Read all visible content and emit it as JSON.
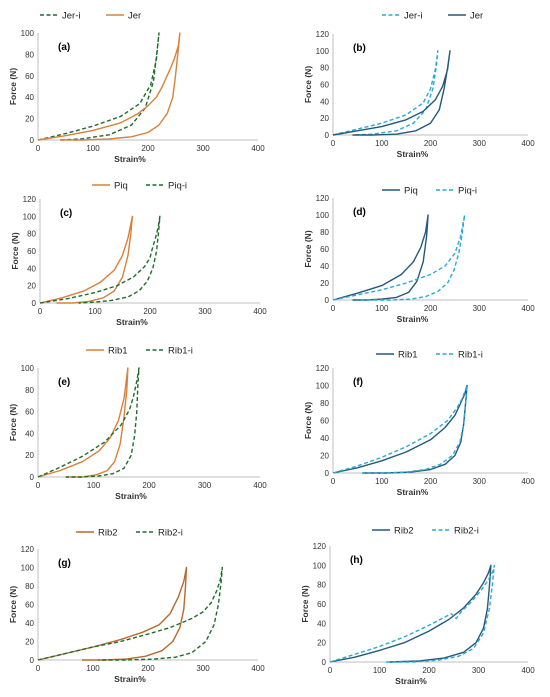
{
  "chart_data": [
    {
      "type": "line",
      "label": "(a)",
      "xlabel": "Strain%",
      "ylabel": "Force (N)",
      "xlim": [
        0,
        400
      ],
      "ylim": [
        0,
        100
      ],
      "xticks": [
        0,
        100,
        200,
        300,
        400
      ],
      "yticks": [
        0,
        20,
        40,
        60,
        80,
        100
      ],
      "legend_position": "top-left",
      "series": [
        {
          "name": "Jer-i",
          "color": "#1e6b2c",
          "dash": "dashed",
          "legend_order": 1,
          "x": [
            0,
            50,
            100,
            150,
            185,
            205,
            215,
            220,
            217,
            210,
            195,
            170,
            130,
            80,
            40
          ],
          "y": [
            0,
            6,
            13,
            22,
            34,
            52,
            75,
            100,
            85,
            55,
            30,
            14,
            5,
            1,
            0
          ]
        },
        {
          "name": "Jer",
          "color": "#d9803a",
          "dash": "solid",
          "legend_order": 2,
          "x": [
            0,
            50,
            100,
            150,
            180,
            200,
            215,
            225,
            232,
            240,
            248,
            255,
            258,
            255,
            250,
            245,
            235,
            220,
            200,
            170,
            130,
            80,
            40
          ],
          "y": [
            0,
            4,
            9,
            16,
            24,
            32,
            40,
            49,
            57,
            66,
            76,
            88,
            100,
            85,
            60,
            40,
            25,
            14,
            7,
            3,
            1,
            0,
            0
          ]
        }
      ]
    },
    {
      "type": "line",
      "label": "(b)",
      "xlabel": "Strain%",
      "ylabel": "Force (N)",
      "xlim": [
        0,
        400
      ],
      "ylim": [
        0,
        120
      ],
      "xticks": [
        0,
        100,
        200,
        300,
        400
      ],
      "yticks": [
        0,
        20,
        40,
        60,
        80,
        100,
        120
      ],
      "legend_position": "top-right",
      "series": [
        {
          "name": "Jer-i",
          "color": "#29a9d6",
          "dash": "dashed",
          "legend_order": 1,
          "x": [
            0,
            50,
            100,
            150,
            185,
            200,
            210,
            215,
            212,
            205,
            190,
            165,
            130,
            80,
            40
          ],
          "y": [
            0,
            7,
            14,
            24,
            38,
            55,
            78,
            100,
            82,
            55,
            30,
            14,
            5,
            1,
            0
          ]
        },
        {
          "name": "Jer",
          "color": "#25597a",
          "dash": "solid",
          "legend_order": 2,
          "x": [
            0,
            50,
            100,
            150,
            185,
            210,
            225,
            235,
            240,
            235,
            228,
            218,
            200,
            170,
            130,
            80,
            40
          ],
          "y": [
            0,
            5,
            10,
            18,
            28,
            42,
            58,
            78,
            100,
            80,
            55,
            30,
            14,
            5,
            1,
            0,
            0
          ]
        }
      ]
    },
    {
      "type": "line",
      "label": "(c)",
      "xlabel": "Strain%",
      "ylabel": "Force (N)",
      "xlim": [
        0,
        400
      ],
      "ylim": [
        0,
        120
      ],
      "xticks": [
        0,
        100,
        200,
        300,
        400
      ],
      "yticks": [
        0,
        20,
        40,
        60,
        80,
        100,
        120
      ],
      "legend_position": "top-left",
      "series": [
        {
          "name": "Piq",
          "color": "#d9803a",
          "dash": "solid",
          "legend_order": 1,
          "x": [
            0,
            40,
            80,
            110,
            135,
            150,
            160,
            168,
            165,
            160,
            150,
            135,
            115,
            90,
            60,
            30
          ],
          "y": [
            0,
            6,
            14,
            24,
            38,
            55,
            75,
            100,
            80,
            55,
            30,
            14,
            6,
            2,
            0,
            0
          ]
        },
        {
          "name": "Piq-i",
          "color": "#1e6b2c",
          "dash": "dashed",
          "legend_order": 2,
          "x": [
            0,
            50,
            100,
            140,
            170,
            190,
            200,
            205,
            210,
            215,
            218,
            216,
            212,
            205,
            195,
            180,
            160,
            130,
            100,
            70
          ],
          "y": [
            0,
            5,
            12,
            20,
            30,
            42,
            52,
            65,
            75,
            88,
            100,
            85,
            60,
            40,
            25,
            14,
            7,
            3,
            1,
            0
          ]
        }
      ]
    },
    {
      "type": "line",
      "label": "(d)",
      "xlabel": "Strain%",
      "ylabel": "Force (N)",
      "xlim": [
        0,
        400
      ],
      "ylim": [
        0,
        120
      ],
      "xticks": [
        0,
        100,
        200,
        300,
        400
      ],
      "yticks": [
        0,
        20,
        40,
        60,
        80,
        100,
        120
      ],
      "legend_position": "top-right",
      "series": [
        {
          "name": "Piq",
          "color": "#25597a",
          "dash": "solid",
          "legend_order": 1,
          "x": [
            0,
            50,
            100,
            140,
            165,
            180,
            190,
            195,
            192,
            185,
            172,
            155,
            130,
            100,
            70,
            40
          ],
          "y": [
            0,
            8,
            17,
            30,
            45,
            62,
            80,
            100,
            75,
            45,
            22,
            9,
            3,
            1,
            0,
            0
          ]
        },
        {
          "name": "Piq-i",
          "color": "#29a9d6",
          "dash": "dashed",
          "legend_order": 2,
          "x": [
            0,
            50,
            100,
            150,
            200,
            230,
            250,
            262,
            270,
            265,
            258,
            248,
            235,
            215,
            190,
            160,
            120,
            80,
            50
          ],
          "y": [
            0,
            6,
            12,
            20,
            30,
            40,
            55,
            75,
            100,
            78,
            55,
            35,
            20,
            10,
            4,
            1,
            0,
            0,
            0
          ]
        }
      ]
    },
    {
      "type": "line",
      "label": "(e)",
      "xlabel": "Strain%",
      "ylabel": "Force (N)",
      "xlim": [
        0,
        400
      ],
      "ylim": [
        0,
        100
      ],
      "xticks": [
        0,
        100,
        200,
        300,
        400
      ],
      "yticks": [
        0,
        20,
        40,
        60,
        80,
        100
      ],
      "legend_position": "top-center",
      "series": [
        {
          "name": "Rib1",
          "color": "#d9803a",
          "dash": "solid",
          "legend_order": 1,
          "x": [
            0,
            40,
            80,
            110,
            130,
            145,
            155,
            162,
            160,
            155,
            148,
            138,
            125,
            105,
            80,
            50
          ],
          "y": [
            0,
            6,
            14,
            24,
            36,
            52,
            72,
            100,
            80,
            55,
            30,
            14,
            6,
            2,
            0,
            0
          ]
        },
        {
          "name": "Rib1-i",
          "color": "#1e6b2c",
          "dash": "dashed",
          "legend_order": 2,
          "x": [
            0,
            40,
            80,
            120,
            150,
            165,
            172,
            178,
            182,
            180,
            178,
            174,
            168,
            155,
            135,
            110,
            80,
            50
          ],
          "y": [
            0,
            9,
            19,
            32,
            48,
            62,
            74,
            88,
            100,
            85,
            60,
            38,
            20,
            8,
            3,
            1,
            0,
            0
          ]
        }
      ]
    },
    {
      "type": "line",
      "label": "(f)",
      "xlabel": "Strain%",
      "ylabel": "Force (N)",
      "xlim": [
        0,
        400
      ],
      "ylim": [
        0,
        120
      ],
      "xticks": [
        0,
        100,
        200,
        300,
        400
      ],
      "yticks": [
        0,
        20,
        40,
        60,
        80,
        100,
        120
      ],
      "legend_position": "top-right",
      "series": [
        {
          "name": "Rib1",
          "color": "#25597a",
          "dash": "solid",
          "legend_order": 1,
          "x": [
            0,
            50,
            100,
            150,
            200,
            230,
            250,
            262,
            270,
            275,
            272,
            268,
            262,
            250,
            230,
            200,
            160,
            110,
            60
          ],
          "y": [
            0,
            6,
            14,
            24,
            38,
            52,
            66,
            80,
            90,
            100,
            80,
            55,
            35,
            20,
            10,
            4,
            1,
            0,
            0
          ]
        },
        {
          "name": "Rib1-i",
          "color": "#29a9d6",
          "dash": "dashed",
          "legend_order": 2,
          "x": [
            0,
            50,
            100,
            150,
            200,
            235,
            255,
            265,
            275,
            272,
            268,
            260,
            245,
            220,
            190,
            150,
            100,
            60
          ],
          "y": [
            0,
            8,
            18,
            30,
            45,
            60,
            75,
            85,
            100,
            78,
            55,
            35,
            20,
            10,
            4,
            1,
            0,
            0
          ]
        }
      ]
    },
    {
      "type": "line",
      "label": "(g)",
      "xlabel": "Strain%",
      "ylabel": "Force (N)",
      "xlim": [
        0,
        400
      ],
      "ylim": [
        0,
        120
      ],
      "xticks": [
        0,
        100,
        200,
        300,
        400
      ],
      "yticks": [
        0,
        20,
        40,
        60,
        80,
        100,
        120
      ],
      "legend_position": "top-left",
      "series": [
        {
          "name": "Rib2",
          "color": "#b8692c",
          "dash": "solid",
          "legend_order": 1,
          "x": [
            0,
            50,
            100,
            150,
            190,
            220,
            240,
            255,
            265,
            270,
            268,
            265,
            258,
            245,
            225,
            195,
            160,
            120,
            80
          ],
          "y": [
            0,
            7,
            14,
            22,
            30,
            38,
            50,
            68,
            85,
            100,
            78,
            55,
            35,
            20,
            10,
            4,
            1,
            0,
            0
          ]
        },
        {
          "name": "Rib2-i",
          "color": "#1e6b2c",
          "dash": "dashed",
          "legend_order": 2,
          "x": [
            0,
            50,
            100,
            150,
            200,
            240,
            260,
            280,
            300,
            315,
            325,
            332,
            335,
            333,
            328,
            320,
            305,
            280,
            250,
            210,
            160,
            110
          ],
          "y": [
            0,
            7,
            14,
            20,
            28,
            35,
            40,
            45,
            52,
            62,
            75,
            88,
            100,
            85,
            60,
            38,
            20,
            8,
            3,
            1,
            0,
            0
          ]
        }
      ]
    },
    {
      "type": "line",
      "label": "(h)",
      "xlabel": "Strain%",
      "ylabel": "Force (N)",
      "xlim": [
        0,
        400
      ],
      "ylim": [
        0,
        120
      ],
      "xticks": [
        0,
        100,
        200,
        300,
        400
      ],
      "yticks": [
        0,
        20,
        40,
        60,
        80,
        100,
        120
      ],
      "legend_position": "top-center",
      "series": [
        {
          "name": "Rib2",
          "color": "#25597a",
          "dash": "solid",
          "legend_order": 1,
          "x": [
            0,
            50,
            100,
            150,
            200,
            240,
            270,
            295,
            310,
            320,
            325,
            322,
            318,
            310,
            295,
            270,
            230,
            180,
            120
          ],
          "y": [
            0,
            5,
            12,
            20,
            32,
            44,
            56,
            70,
            82,
            92,
            100,
            78,
            55,
            35,
            20,
            10,
            4,
            1,
            0
          ]
        },
        {
          "name": "Rib2-i",
          "color": "#29a9d6",
          "dash": "dashed",
          "legend_order": 2,
          "x": [
            0,
            50,
            100,
            150,
            200,
            230,
            245,
            255,
            265,
            285,
            305,
            320,
            330,
            332,
            328,
            322,
            310,
            290,
            260,
            220,
            170,
            110
          ],
          "y": [
            0,
            8,
            16,
            26,
            38,
            46,
            50,
            45,
            52,
            62,
            74,
            85,
            95,
            100,
            80,
            55,
            30,
            14,
            6,
            2,
            0,
            0
          ]
        }
      ]
    }
  ]
}
